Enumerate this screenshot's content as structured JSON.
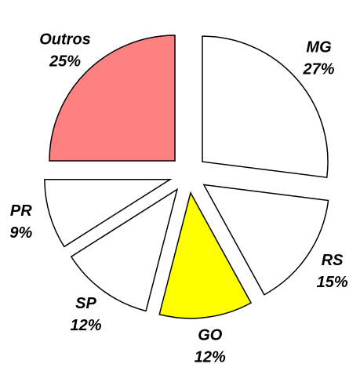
{
  "chart_data": {
    "type": "pie",
    "categories": [
      "MG",
      "RS",
      "GO",
      "SP",
      "PR",
      "Outros"
    ],
    "values": [
      27,
      15,
      12,
      12,
      9,
      25
    ],
    "value_labels": [
      "27%",
      "15%",
      "12%",
      "12%",
      "9%",
      "25%"
    ],
    "colors": [
      "#ffffff",
      "#ffffff",
      "#ffff00",
      "#ffffff",
      "#ffffff",
      "#ff8080"
    ]
  }
}
